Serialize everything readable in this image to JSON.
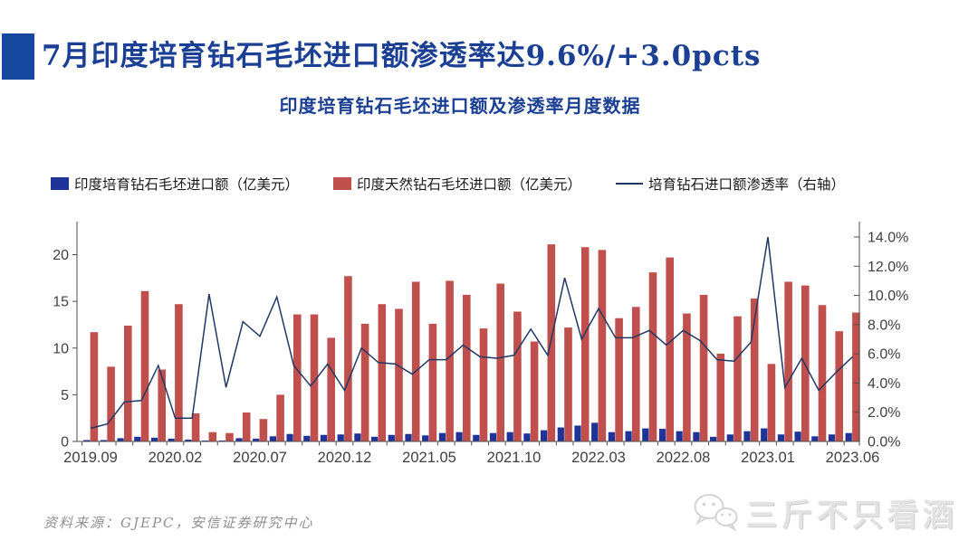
{
  "header": {
    "title": "7月印度培育钻石毛坯进口额渗透率达9.6%/+3.0pcts",
    "subtitle": "印度培育钻石毛坯进口额及渗透率月度数据",
    "title_color": "#1B3F93",
    "accent_square_color": "#17479E"
  },
  "legend": {
    "items": [
      {
        "label": "印度培育钻石毛坯进口额（亿美元）",
        "swatch": "square",
        "color": "#1F3499"
      },
      {
        "label": "印度天然钻石毛坯进口额（亿美元）",
        "swatch": "square",
        "color": "#C0504D"
      },
      {
        "label": "培育钻石进口额渗透率（右轴）",
        "swatch": "line",
        "color": "#203864"
      }
    ]
  },
  "chart_data": {
    "type": "bar",
    "subtype": "bars-with-line-dual-axis",
    "title": "印度培育钻石毛坯进口额及渗透率月度数据",
    "xlabel": "",
    "ylabel_left": "",
    "ylabel_right": "",
    "grid": false,
    "legend_position": "top",
    "categories": [
      "2019.09",
      "2019.10",
      "2019.11",
      "2019.12",
      "2020.01",
      "2020.02",
      "2020.03",
      "2020.04",
      "2020.05",
      "2020.06",
      "2020.07",
      "2020.08",
      "2020.09",
      "2020.10",
      "2020.11",
      "2020.12",
      "2021.01",
      "2021.02",
      "2021.03",
      "2021.04",
      "2021.05",
      "2021.06",
      "2021.07",
      "2021.08",
      "2021.09",
      "2021.10",
      "2021.11",
      "2021.12",
      "2022.01",
      "2022.02",
      "2022.03",
      "2022.04",
      "2022.05",
      "2022.06",
      "2022.07",
      "2022.08",
      "2022.09",
      "2022.10",
      "2022.11",
      "2022.12",
      "2023.01",
      "2023.02",
      "2023.03",
      "2023.04",
      "2023.05",
      "2023.06"
    ],
    "series": [
      {
        "name": "印度培育钻石毛坯进口额（亿美元）",
        "type": "bar",
        "axis": "left",
        "color": "#1F3499",
        "values": [
          0.15,
          0.15,
          0.35,
          0.5,
          0.4,
          0.3,
          0.2,
          0.1,
          0.1,
          0.35,
          0.3,
          0.55,
          0.8,
          0.6,
          0.7,
          0.75,
          0.85,
          0.5,
          0.7,
          0.8,
          0.65,
          0.9,
          1.0,
          0.7,
          0.9,
          1.0,
          0.85,
          1.2,
          1.5,
          1.7,
          2.0,
          1.0,
          1.1,
          1.4,
          1.35,
          1.1,
          1.0,
          0.5,
          0.75,
          1.1,
          1.4,
          0.75,
          1.05,
          0.55,
          0.75,
          0.9
        ]
      },
      {
        "name": "印度天然钻石毛坯进口额（亿美元）",
        "type": "bar",
        "axis": "left",
        "color": "#C0504D",
        "values": [
          11.7,
          8.0,
          12.4,
          16.1,
          7.7,
          14.7,
          3.0,
          1.0,
          0.9,
          3.1,
          2.4,
          5.0,
          13.6,
          13.6,
          11.1,
          17.7,
          12.6,
          14.7,
          14.2,
          17.1,
          12.6,
          17.2,
          15.7,
          12.1,
          16.9,
          13.9,
          10.7,
          21.1,
          12.2,
          20.8,
          20.5,
          13.2,
          14.4,
          18.1,
          19.7,
          13.7,
          15.7,
          9.4,
          13.4,
          15.3,
          8.3,
          17.1,
          16.7,
          14.6,
          11.8,
          13.8
        ]
      },
      {
        "name": "培育钻石进口额渗透率（右轴）",
        "type": "line",
        "axis": "right",
        "unit": "%",
        "color": "#203864",
        "values": [
          0.9,
          1.2,
          2.7,
          2.8,
          5.2,
          1.6,
          1.6,
          10.1,
          3.7,
          8.2,
          7.2,
          9.9,
          5.2,
          3.8,
          5.3,
          3.5,
          6.4,
          5.4,
          5.3,
          4.6,
          5.6,
          5.6,
          6.6,
          5.8,
          5.7,
          5.9,
          7.7,
          5.9,
          11.2,
          7.0,
          9.1,
          7.1,
          7.1,
          7.6,
          6.6,
          7.6,
          6.9,
          5.6,
          5.5,
          6.8,
          14.0,
          3.7,
          5.7,
          3.5,
          4.7,
          5.8
        ]
      }
    ],
    "left_axis": {
      "ticks": [
        0,
        5,
        10,
        15,
        20
      ],
      "range": [
        0,
        23.5
      ]
    },
    "right_axis": {
      "ticks": [
        "0.0%",
        "2.0%",
        "4.0%",
        "6.0%",
        "8.0%",
        "10.0%",
        "12.0%",
        "14.0%"
      ],
      "tick_step_pct": 2,
      "range_pct": [
        0,
        15
      ]
    },
    "x_tick_labels": [
      "2019.09",
      "2020.02",
      "2020.07",
      "2020.12",
      "2021.05",
      "2021.10",
      "2022.03",
      "2022.08",
      "2023.01",
      "2023.06"
    ],
    "x_tick_every": 5
  },
  "footer": {
    "source": "资料来源：GJEPC，安信证券研究中心"
  },
  "watermark": {
    "text": "三斤不只看酒",
    "icon": "wechat-icon"
  }
}
